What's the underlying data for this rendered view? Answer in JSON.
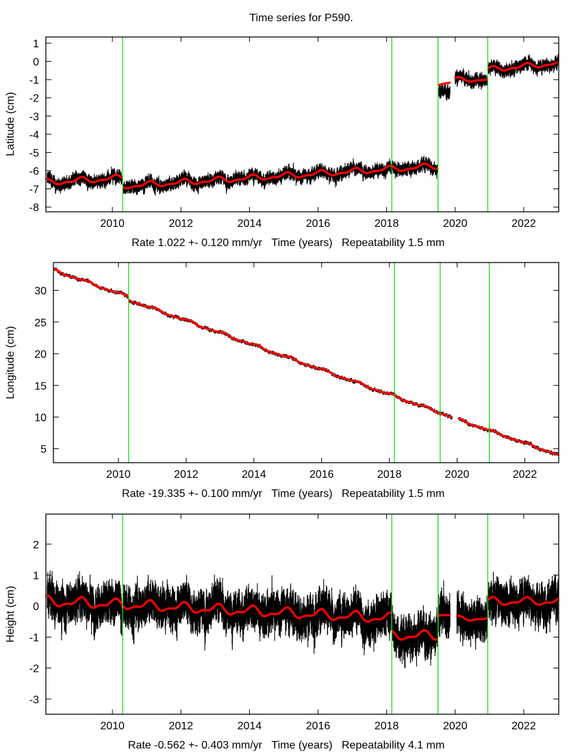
{
  "title": "Time series for P590.",
  "colors": {
    "data": "#000000",
    "model": "#ff0000",
    "breaks": "#00dd00",
    "frame": "#000000"
  },
  "chart_data": [
    {
      "type": "scatter",
      "ylabel": "Latitude (cm)",
      "xlabel_parts": [
        "Rate 1.022 +- 0.120 mm/yr",
        "Time (years)",
        "Repeatability 1.5 mm"
      ],
      "xlim": [
        2008.06,
        2023.02
      ],
      "ylim": [
        -8.26,
        1.34
      ],
      "xticks": [
        2010,
        2012,
        2014,
        2016,
        2018,
        2020,
        2022
      ],
      "xtick_labels": [
        "2010",
        "2012",
        "2014",
        "2016",
        "2018",
        "2020",
        "2022"
      ],
      "yticks": [
        1,
        0,
        -1,
        -2,
        -3,
        -4,
        -5,
        -6,
        -7,
        -8
      ],
      "ytick_labels": [
        "1",
        "0",
        "-1",
        "-2",
        "-3",
        "-4",
        "-5",
        "-6",
        "-7",
        "-8"
      ],
      "breaks": [
        2010.3,
        2018.15,
        2019.5,
        2020.95
      ],
      "noise": 0.25,
      "segments": [
        {
          "x": [
            2008.1,
            2010.28
          ],
          "base": [
            -6.65,
            -6.4
          ],
          "amp": 0.13
        },
        {
          "x": [
            2010.32,
            2019.48
          ],
          "base": [
            -6.85,
            -5.75
          ],
          "amp": 0.13
        },
        {
          "x": [
            2019.52,
            2019.85
          ],
          "base": [
            -1.25,
            -1.15
          ],
          "amp": 0.05,
          "offset": -0.4
        },
        {
          "x": [
            2020.0,
            2020.93
          ],
          "base": [
            -1.0,
            -1.0
          ],
          "amp": 0.1
        },
        {
          "x": [
            2020.97,
            2023.0
          ],
          "base": [
            -0.45,
            -0.1
          ],
          "amp": 0.12
        }
      ]
    },
    {
      "type": "scatter",
      "ylabel": "Longitude (cm)",
      "xlabel_parts": [
        "Rate -19.335 +- 0.100 mm/yr",
        "Time (years)",
        "Repeatability 1.5 mm"
      ],
      "xlim": [
        2008.08,
        2023.0
      ],
      "ylim": [
        2.8,
        34.4
      ],
      "xticks": [
        2010,
        2012,
        2014,
        2016,
        2018,
        2020,
        2022
      ],
      "xtick_labels": [
        "2010",
        "2012",
        "2014",
        "2016",
        "2018",
        "2020",
        "2022"
      ],
      "yticks": [
        30,
        25,
        20,
        15,
        10,
        5
      ],
      "ytick_labels": [
        "30",
        "25",
        "20",
        "15",
        "10",
        "5"
      ],
      "breaks": [
        2010.3,
        2018.15,
        2019.5,
        2020.95
      ],
      "noise": 0.2,
      "segments": [
        {
          "x": [
            2008.1,
            2010.28
          ],
          "base": [
            33.2,
            29.0
          ],
          "amp": 0.15
        },
        {
          "x": [
            2010.32,
            2019.85
          ],
          "base": [
            28.5,
            10.0
          ],
          "amp": 0.15
        },
        {
          "x": [
            2020.05,
            2023.0
          ],
          "base": [
            9.6,
            4.0
          ],
          "amp": 0.12
        }
      ]
    },
    {
      "type": "scatter",
      "ylabel": "Height (cm)",
      "xlabel_parts": [
        "Rate -0.562 +- 0.403 mm/yr",
        "Time (years)",
        "Repeatability 4.1 mm"
      ],
      "xlim": [
        2008.06,
        2023.02
      ],
      "ylim": [
        -3.49,
        2.97
      ],
      "xticks": [
        2010,
        2012,
        2014,
        2016,
        2018,
        2020,
        2022
      ],
      "xtick_labels": [
        "2010",
        "2012",
        "2014",
        "2016",
        "2018",
        "2020",
        "2022"
      ],
      "yticks": [
        2,
        1,
        0,
        -1,
        -2,
        -3
      ],
      "ytick_labels": [
        "2",
        "1",
        "0",
        "-1",
        "-2",
        "-3"
      ],
      "breaks": [
        2010.3,
        2018.15,
        2019.5,
        2020.95
      ],
      "noise": 0.45,
      "segments": [
        {
          "x": [
            2008.1,
            2010.28
          ],
          "base": [
            0.15,
            0.05
          ],
          "amp": 0.13
        },
        {
          "x": [
            2010.32,
            2018.13
          ],
          "base": [
            0.05,
            -0.4
          ],
          "amp": 0.13
        },
        {
          "x": [
            2018.17,
            2019.48
          ],
          "base": [
            -0.95,
            -0.95
          ],
          "amp": 0.12
        },
        {
          "x": [
            2019.52,
            2019.85
          ],
          "base": [
            -0.28,
            -0.28
          ],
          "amp": 0.03
        },
        {
          "x": [
            2020.05,
            2020.93
          ],
          "base": [
            -0.4,
            -0.4
          ],
          "amp": 0.06
        },
        {
          "x": [
            2020.97,
            2023.0
          ],
          "base": [
            0.15,
            0.15
          ],
          "amp": 0.1
        }
      ]
    }
  ]
}
